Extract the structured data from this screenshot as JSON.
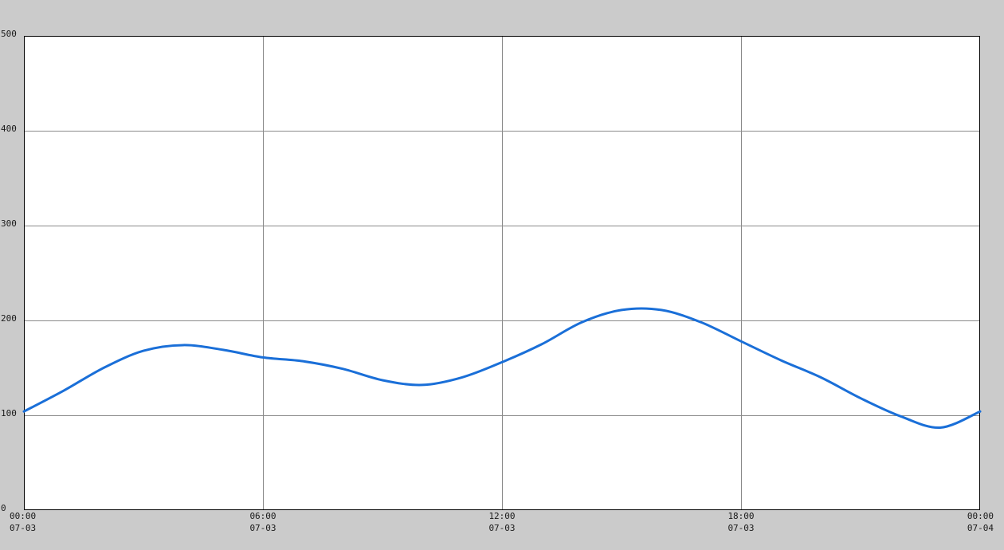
{
  "chart_data": {
    "type": "line",
    "title": "",
    "xlabel": "",
    "ylabel": "",
    "ylim": [
      0,
      500
    ],
    "yticks": [
      0,
      100,
      200,
      300,
      400,
      500
    ],
    "ytick_labels": [
      "0",
      "100",
      "200",
      "300",
      "400",
      "500"
    ],
    "xlim": [
      0,
      24
    ],
    "xticks": [
      0,
      6,
      12,
      18,
      24
    ],
    "xtick_labels": [
      {
        "time": "00:00",
        "date": "07-03"
      },
      {
        "time": "06:00",
        "date": "07-03"
      },
      {
        "time": "12:00",
        "date": "07-03"
      },
      {
        "time": "18:00",
        "date": "07-03"
      },
      {
        "time": "00:00",
        "date": "07-04"
      }
    ],
    "grid": true,
    "series": [
      {
        "color": "#1a6fd8",
        "x": [
          0,
          1,
          2,
          3,
          4,
          5,
          6,
          7,
          8,
          9,
          10,
          11,
          12,
          13,
          14,
          15,
          16,
          17,
          18,
          19,
          20,
          21,
          22,
          23,
          24
        ],
        "values": [
          104,
          126,
          150,
          168,
          174,
          169,
          161,
          157,
          149,
          137,
          132,
          140,
          156,
          175,
          198,
          211,
          211,
          198,
          178,
          158,
          140,
          118,
          99,
          87,
          104
        ]
      }
    ]
  },
  "colors": {
    "background": "#cbcbcb",
    "plot_background": "#ffffff",
    "grid": "#8a8a8a",
    "axis": "#000000",
    "line": "#1a6fd8"
  }
}
